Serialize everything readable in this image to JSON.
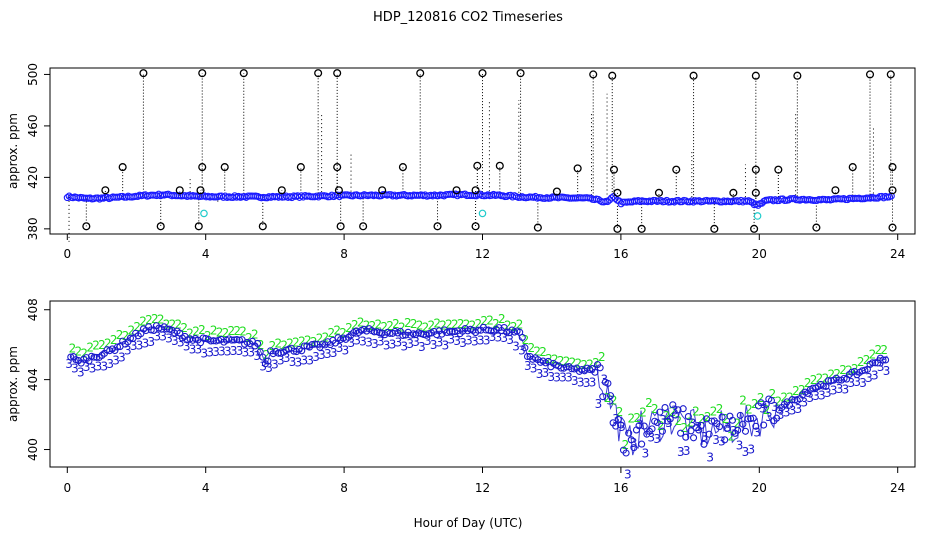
{
  "figure": {
    "title": "HDP_120816  CO2 Timeseries",
    "xlabel": "Hour of Day (UTC)"
  },
  "colors": {
    "black": "#000000",
    "blue": "#1a1aff",
    "cyan": "#22cccc",
    "green": "#22dd22",
    "navy": "#1a1acc"
  },
  "chart_data": [
    {
      "type": "scatter",
      "panel": "top",
      "title": "",
      "xlabel": "",
      "ylabel": "approx. ppm",
      "xlim": [
        -0.5,
        24.5
      ],
      "ylim": [
        376,
        505
      ],
      "xticks": [
        0,
        4,
        8,
        12,
        16,
        20,
        24
      ],
      "yticks": [
        380,
        420,
        460,
        500
      ],
      "grid": false,
      "series": [
        {
          "name": "base (blue circles)",
          "color": "blue",
          "knots_x": [
            0,
            0.6,
            1.2,
            1.8,
            2.3,
            2.8,
            3.5,
            4.0,
            5.0,
            5.7,
            6.5,
            7.5,
            8.5,
            9.5,
            10.5,
            11.5,
            12.5,
            13.0,
            13.5,
            14.5,
            15.0,
            15.4,
            15.6,
            15.8,
            16.0,
            16.5,
            17.0,
            18.0,
            19.0,
            19.7,
            19.95,
            20.2,
            21.0,
            22.0,
            23.0,
            23.8
          ],
          "knots_y": [
            405,
            403.5,
            404,
            405,
            406,
            406.5,
            405.5,
            405,
            405,
            404.8,
            405,
            405.5,
            406,
            406,
            406,
            406.5,
            406,
            405,
            404.5,
            404,
            403.8,
            402,
            400.5,
            405,
            400,
            401.5,
            401.5,
            401.5,
            401.5,
            401.5,
            398,
            402,
            403,
            402.5,
            404,
            405
          ]
        },
        {
          "name": "cyan circles",
          "color": "cyan",
          "x": [
            3.95,
            12.0,
            19.95
          ],
          "y": [
            392,
            392,
            390
          ]
        },
        {
          "name": "high black circles",
          "color": "black",
          "x": [
            2.2,
            3.9,
            5.1,
            7.25,
            7.8,
            10.2,
            12.0,
            13.1,
            15.2,
            15.75,
            18.1,
            19.9,
            21.1,
            23.2,
            23.8
          ],
          "y": [
            501,
            501,
            501,
            501,
            501,
            501,
            501,
            501,
            500,
            499,
            499,
            499,
            499,
            500,
            500
          ]
        },
        {
          "name": "mid black circles",
          "color": "black",
          "x": [
            1.6,
            3.9,
            4.55,
            6.75,
            7.8,
            9.7,
            11.85,
            12.5,
            14.75,
            15.8,
            17.6,
            19.9,
            20.55,
            22.7,
            23.85
          ],
          "y": [
            428,
            428,
            428,
            428,
            428,
            428,
            429,
            429,
            427,
            426,
            426,
            426,
            426,
            428,
            428
          ]
        },
        {
          "name": "near black circles",
          "color": "black",
          "x": [
            1.1,
            3.25,
            3.85,
            6.2,
            7.85,
            9.1,
            11.25,
            11.8,
            14.15,
            15.9,
            17.1,
            19.25,
            19.9,
            22.2,
            23.85
          ],
          "y": [
            410,
            410,
            410,
            410,
            410,
            410,
            410,
            410,
            409,
            408,
            408,
            408,
            408,
            410,
            410
          ]
        },
        {
          "name": "low black circles",
          "color": "black",
          "x": [
            0.55,
            2.7,
            3.8,
            5.65,
            7.9,
            8.55,
            10.7,
            11.8,
            13.6,
            15.9,
            16.6,
            18.7,
            19.85,
            21.65,
            23.85
          ],
          "y": [
            382,
            382,
            382,
            382,
            382,
            382,
            382,
            382,
            381,
            380,
            380,
            380,
            380,
            381,
            381
          ]
        }
      ]
    },
    {
      "type": "scatter",
      "panel": "bottom",
      "title": "",
      "xlabel": "Hour of Day (UTC)",
      "ylabel": "approx. ppm",
      "xlim": [
        -0.5,
        24.5
      ],
      "ylim": [
        399,
        408.5
      ],
      "xticks": [
        0,
        4,
        8,
        12,
        16,
        20,
        24
      ],
      "yticks": [
        400,
        404,
        408
      ],
      "grid": false,
      "series": [
        {
          "name": "circles",
          "color": "navy",
          "marker": "o",
          "knots_x": [
            0,
            0.3,
            0.6,
            1.2,
            1.8,
            2.2,
            2.6,
            3.0,
            3.6,
            4.2,
            5.0,
            5.5,
            5.75,
            5.85,
            6.5,
            7.5,
            8.0,
            8.5,
            10.0,
            11.5,
            12.5,
            13.1,
            13.3,
            13.7,
            14.5,
            15.3,
            15.6,
            16.2,
            16.5,
            17.0,
            17.5,
            18.3,
            19.0,
            19.7,
            20.5,
            21.0,
            21.5,
            22.0,
            23.0,
            23.5
          ],
          "knots_y": [
            405.5,
            405.0,
            405.2,
            405.6,
            406.3,
            406.8,
            407.0,
            406.8,
            406.3,
            406.2,
            406.2,
            406.0,
            404.8,
            405.6,
            405.7,
            406.0,
            406.4,
            406.8,
            406.6,
            406.8,
            406.9,
            406.6,
            405.4,
            405.0,
            404.6,
            404.5,
            403.3,
            400.2,
            401.1,
            401.5,
            401.8,
            401.0,
            401.2,
            401.5,
            402.3,
            402.8,
            403.5,
            403.8,
            404.5,
            405.2
          ]
        },
        {
          "name": "label 2",
          "color": "green",
          "marker": "2",
          "offset": 0.45
        },
        {
          "name": "label 3",
          "color": "navy",
          "marker": "3",
          "offset": -0.6
        }
      ]
    }
  ]
}
